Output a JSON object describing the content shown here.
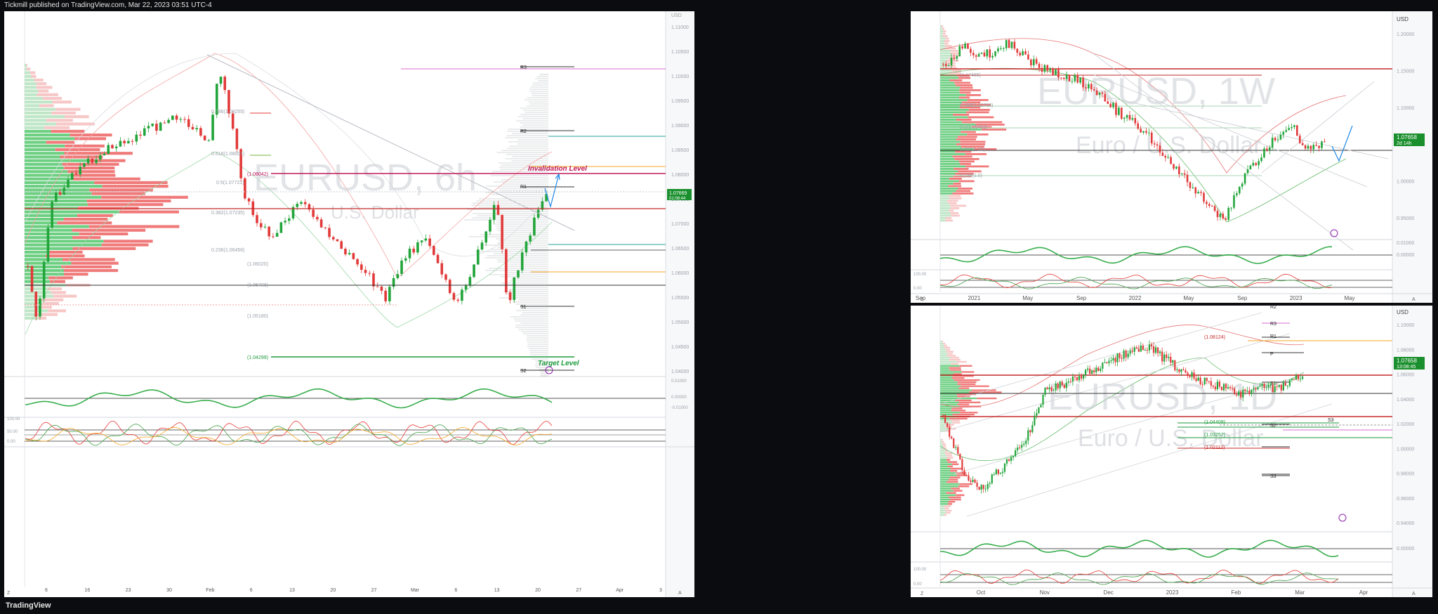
{
  "header": {
    "text": "Tickmill published on TradingView.com, Mar 22, 2023 03:51 UTC-4"
  },
  "footer": {
    "brand": "TradingView"
  },
  "colors": {
    "up": "#22a53a",
    "down": "#e23a3a",
    "profile_up": "#6dcf82",
    "profile_down": "#f07a7a",
    "bg": "#ffffff",
    "frame": "#0b0c0f"
  },
  "panels": {
    "main": {
      "watermark_symbol": "EURUSD, 6h",
      "watermark_desc": "U.S. Dollar",
      "currency": "USD",
      "price_ticks": [
        "1.11000",
        "1.10500",
        "1.10000",
        "1.09500",
        "1.09000",
        "1.08500",
        "1.08000",
        "1.07500",
        "1.07000",
        "1.06500",
        "1.06000",
        "1.05500",
        "1.05000",
        "1.04500",
        "1.04000"
      ],
      "last_price": "1.07669",
      "countdown": "01:08:44",
      "osc_ticks": [
        "0.01000",
        "0.00000",
        "-0.01000"
      ],
      "stoch_ticks": [
        "100.00",
        "50.00",
        "0.00"
      ],
      "time_ticks": [
        "6",
        "16",
        "23",
        "30",
        "Feb",
        "6",
        "13",
        "20",
        "27",
        "Mar",
        "6",
        "13",
        "20",
        "27",
        "Apr",
        "3"
      ],
      "fib_labels": [
        "0.786(1.08255)",
        "0.618(1.08001)",
        "0.5(1.07721)",
        "0.382(1.07235)",
        "0.236(1.06456)",
        "(1.06020)",
        "(1.05728)",
        "(1.05180)"
      ],
      "levels": {
        "r3": "R3",
        "r2": "R2",
        "r1": "R1",
        "s1": "S1",
        "s2": "S2"
      },
      "invalidation": {
        "label": "Invalidation Level",
        "value": "(1.08042)"
      },
      "target": {
        "label": "Target Level",
        "value": "(1.04299)"
      },
      "z_label": "Z",
      "a_label": "A"
    },
    "weekly": {
      "watermark_symbol": "EURUSD, 1W",
      "watermark_desc": "Euro / U.S. Dollar",
      "currency": "USD",
      "price_ticks": [
        "1.20000",
        "1.15000",
        "1.10000",
        "1.05000",
        "1.00000",
        "0.95000"
      ],
      "last_price": "1.07658",
      "countdown": "2d 14h",
      "osc_ticks": [
        "0.01000",
        "0.00000"
      ],
      "stoch_ticks": [
        "100.00",
        "0.00"
      ],
      "time_ticks": [
        "Sep",
        "2021",
        "May",
        "Sep",
        "2022",
        "May",
        "Sep",
        "2023",
        "May"
      ],
      "fib_labels": [
        "(1.17486)",
        "0.786(1.12768)",
        "0.5(1.09463)",
        "0.382(1.06)",
        "0.236(1.0)"
      ],
      "z_label": "Z",
      "a_label": "A"
    },
    "daily": {
      "watermark_symbol": "EURUSD, 1D",
      "watermark_desc": "Euro / U.S. Dollar",
      "currency": "USD",
      "price_ticks": [
        "1.10000",
        "1.08000",
        "1.06000",
        "1.04000",
        "1.02000",
        "1.00000",
        "0.98000",
        "0.96000",
        "0.94000"
      ],
      "last_price": "1.07658",
      "countdown": "13:08:45",
      "osc_ticks": [
        "0.00000"
      ],
      "stoch_ticks": [
        "100.00",
        "0.00"
      ],
      "time_ticks": [
        "Oct",
        "Nov",
        "Dec",
        "2023",
        "Feb",
        "Mar",
        "Apr"
      ],
      "levels": {
        "r3": "R3",
        "r2": "R2",
        "r1": "R1",
        "p": "P",
        "s1": "S1",
        "s2": "S2",
        "s3": "S3",
        "s3b": "S3"
      },
      "value_labels": [
        "(1.08124)",
        "(1.04409)",
        "(1.03257)",
        "(1.02112)"
      ],
      "z_label": "Z",
      "a_label": "A"
    }
  }
}
